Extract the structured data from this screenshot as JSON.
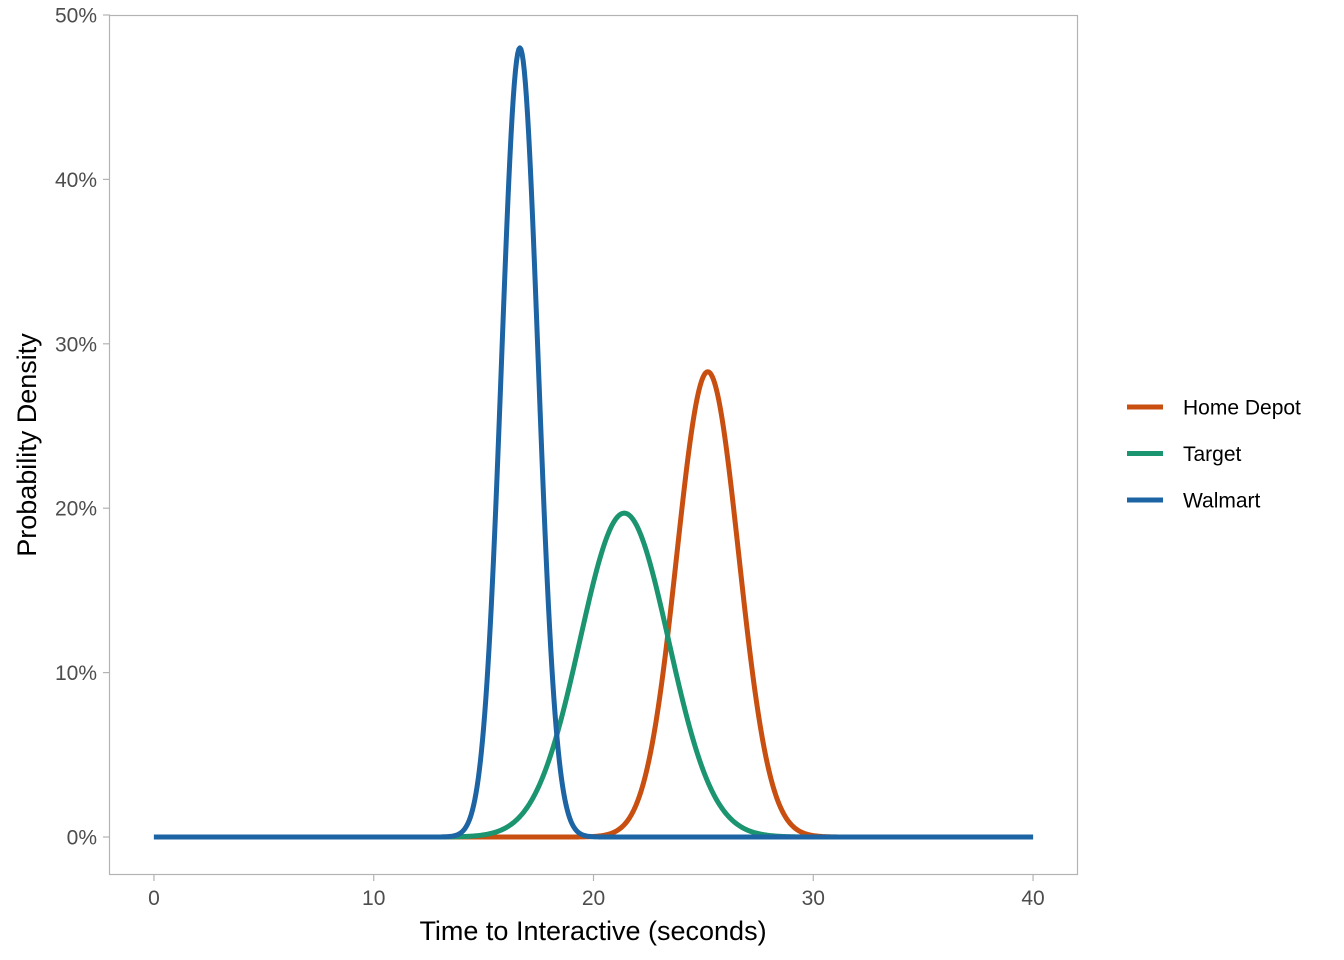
{
  "chart_data": {
    "type": "line",
    "xlabel": "Time to Interactive (seconds)",
    "ylabel": "Probability Density",
    "xlim": [
      -2,
      42
    ],
    "ylim": [
      -0.0225,
      0.5
    ],
    "x_ticks": [
      0,
      10,
      20,
      30,
      40
    ],
    "x_tick_labels": [
      "0",
      "10",
      "20",
      "30",
      "40"
    ],
    "y_ticks": [
      0,
      0.1,
      0.2,
      0.3,
      0.4,
      0.5
    ],
    "y_tick_labels": [
      "0%",
      "10%",
      "20%",
      "30%",
      "40%",
      "50%"
    ],
    "grid": false,
    "legend_position": "right",
    "series": [
      {
        "name": "Home Depot",
        "color": "#c84f0f",
        "distribution": "normal",
        "mean": 25.2,
        "sd": 1.41,
        "peak": 0.283,
        "x_range": [
          0,
          40
        ]
      },
      {
        "name": "Target",
        "color": "#1b9470",
        "distribution": "normal",
        "mean": 21.4,
        "sd": 2.02,
        "peak": 0.197,
        "x_range": [
          0,
          40
        ]
      },
      {
        "name": "Walmart",
        "color": "#1c64a3",
        "distribution": "normal",
        "mean": 16.65,
        "sd": 0.83,
        "peak": 0.48,
        "x_range": [
          0,
          40
        ]
      }
    ]
  }
}
